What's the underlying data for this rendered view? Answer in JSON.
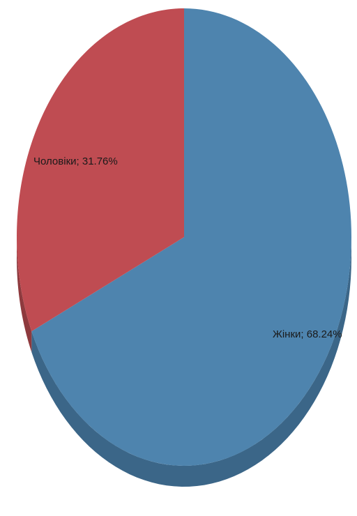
{
  "chart_data": {
    "type": "pie",
    "style": "3d",
    "slices": [
      {
        "label": "Жінки",
        "value": 68.24,
        "display": "Жінки; 68.24%",
        "color": "#4e84ae",
        "side_color": "#3b6688"
      },
      {
        "label": "Чоловіки",
        "value": 31.76,
        "display": "Чоловіки; 31.76%",
        "color": "#bf4c52",
        "side_color": "#8e3a3e"
      }
    ],
    "unit": "%",
    "legend": "none"
  }
}
